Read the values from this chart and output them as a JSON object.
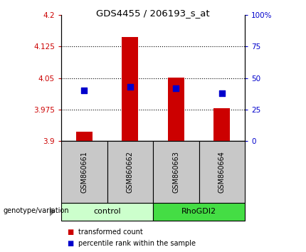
{
  "title": "GDS4455 / 206193_s_at",
  "samples": [
    "GSM860661",
    "GSM860662",
    "GSM860663",
    "GSM860664"
  ],
  "bar_tops": [
    3.922,
    4.148,
    4.052,
    3.978
  ],
  "bar_bottom": 3.9,
  "percentile_ranks": [
    40,
    43,
    42,
    38
  ],
  "ylim_left": [
    3.9,
    4.2
  ],
  "ylim_right": [
    0,
    100
  ],
  "left_yticks": [
    3.9,
    3.975,
    4.05,
    4.125,
    4.2
  ],
  "right_yticks": [
    0,
    25,
    50,
    75,
    100
  ],
  "left_ytick_labels": [
    "3.9",
    "3.975",
    "4.05",
    "4.125",
    "4.2"
  ],
  "right_ytick_labels": [
    "0",
    "25",
    "50",
    "75",
    "100%"
  ],
  "bar_color": "#cc0000",
  "dot_color": "#0000cc",
  "control_color": "#ccffcc",
  "rhodgi2_color": "#44dd44",
  "legend_items": [
    "transformed count",
    "percentile rank within the sample"
  ],
  "sample_bg_color": "#c8c8c8",
  "dot_size": 30,
  "bar_width": 0.35
}
